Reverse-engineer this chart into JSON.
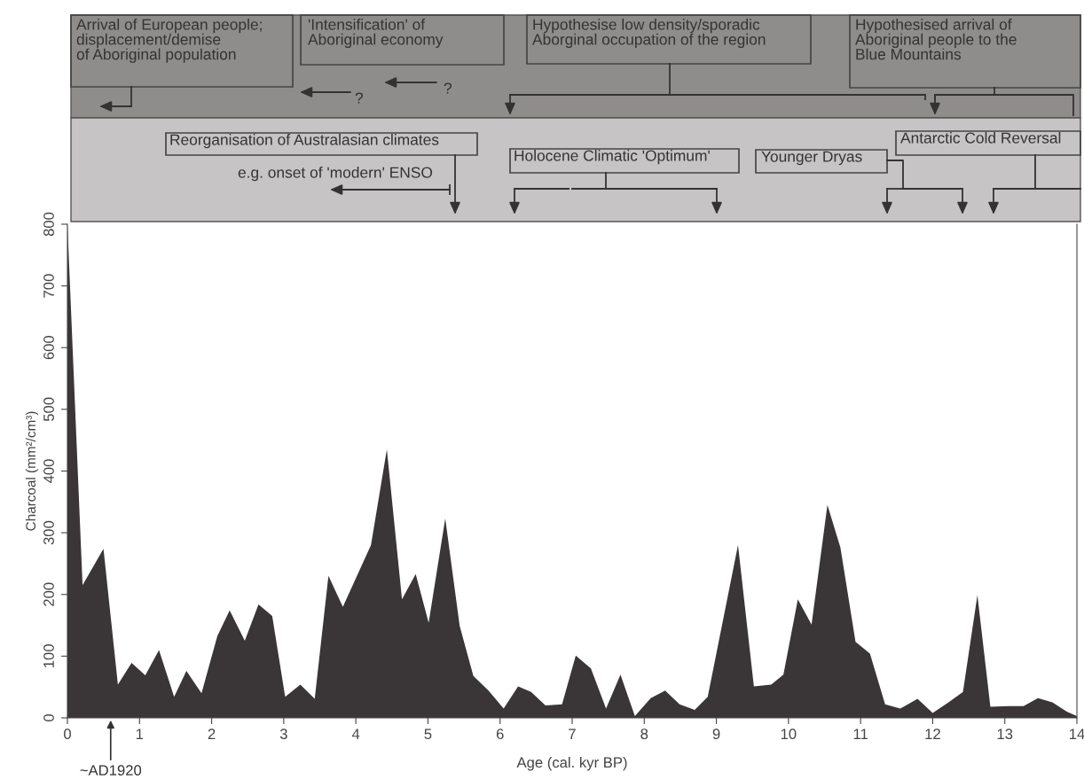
{
  "chart_data": {
    "type": "area",
    "xlabel": "Age (cal. kyr BP)",
    "ylabel": "Charcoal (mm²/cm³)",
    "x": [
      0,
      0.21,
      0.5,
      0.7,
      0.89,
      1.08,
      1.27,
      1.48,
      1.65,
      1.86,
      2.08,
      2.25,
      2.46,
      2.65,
      2.84,
      3.02,
      3.23,
      3.43,
      3.62,
      3.82,
      4.21,
      4.43,
      4.64,
      4.83,
      5.01,
      5.24,
      5.44,
      5.63,
      5.84,
      6.05,
      6.25,
      6.43,
      6.63,
      6.86,
      7.05,
      7.26,
      7.47,
      7.67,
      7.87,
      8.09,
      8.29,
      8.49,
      8.7,
      8.88,
      9.3,
      9.52,
      9.76,
      9.93,
      10.13,
      10.32,
      10.54,
      10.72,
      10.93,
      11.13,
      11.34,
      11.55,
      11.79,
      12.0,
      12.22,
      12.42,
      12.62,
      12.8,
      13.05,
      13.26,
      13.46,
      13.66,
      13.86,
      14.0
    ],
    "series": [
      {
        "color": "#3a3536",
        "values": [
          800,
          215,
          274,
          54,
          89,
          69,
          110,
          34,
          76,
          40,
          133,
          174,
          125,
          184,
          165,
          34,
          54,
          31,
          230,
          180,
          280,
          435,
          192,
          233,
          154,
          323,
          149,
          68,
          44,
          15,
          51,
          42,
          20,
          22,
          101,
          80,
          15,
          70,
          3,
          32,
          44,
          22,
          13,
          34,
          280,
          51,
          54,
          70,
          192,
          151,
          345,
          276,
          123,
          104,
          22,
          15,
          31,
          8,
          25,
          42,
          199,
          18,
          19,
          19,
          32,
          25,
          10,
          3
        ]
      }
    ],
    "xlim": [
      0,
      14
    ],
    "ylim": [
      0,
      800
    ],
    "xticks": [
      0,
      1,
      2,
      3,
      4,
      5,
      6,
      7,
      8,
      9,
      10,
      11,
      12,
      13,
      14
    ],
    "yticks": [
      0,
      100,
      200,
      300,
      400,
      500,
      600,
      700,
      800
    ],
    "grid": false,
    "legend": false,
    "annotations": [
      "Arrival of European people;\ndisplacement/demise\nof Aboriginal population",
      "'Intensification' of\nAboriginal economy",
      "?",
      "?",
      "Hypothesise low density/sporadic\nAborginal occupation of the region",
      "Hypothesised arrival of\nAboriginal people to the\nBlue Mountains",
      "Reorganisation of Australasian climates",
      "e.g. onset of 'modern' ENSO",
      "Holocene Climatic 'Optimum'",
      "Younger Dryas",
      "Antarctic Cold Reversal",
      {
        "text": "~AD1920",
        "x": 0.6,
        "y": 0
      }
    ]
  }
}
